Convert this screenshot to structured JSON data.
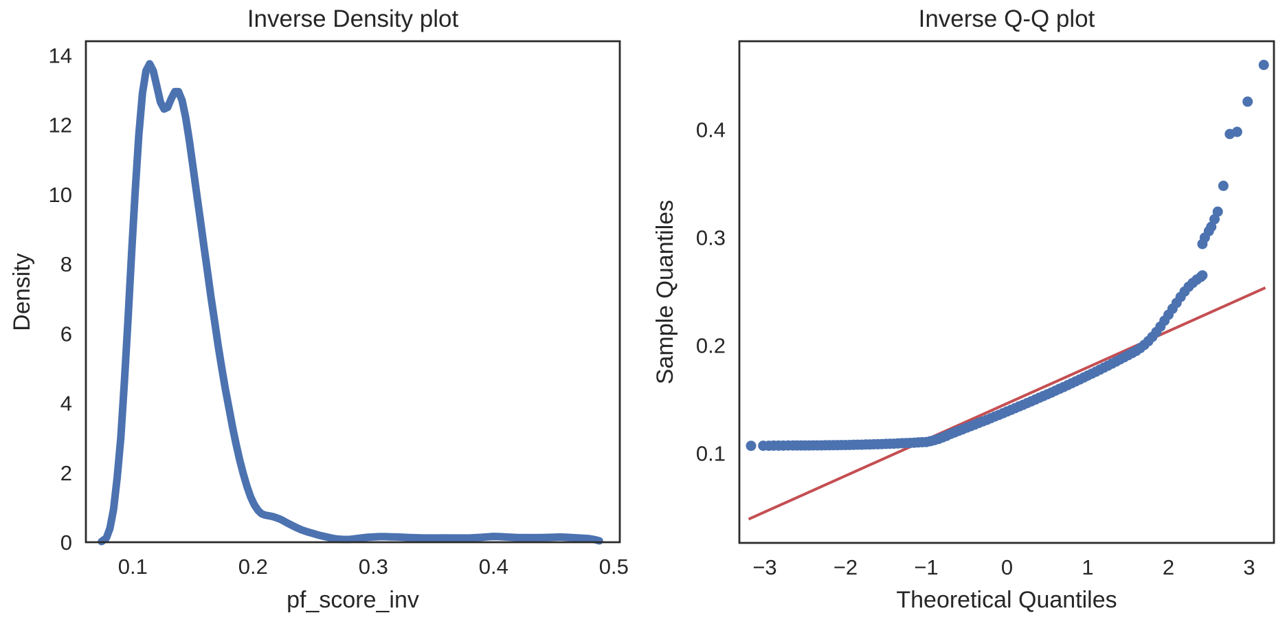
{
  "figure": {
    "background": "#ffffff",
    "text_color": "#262626",
    "spine_color": "#2b2b2b",
    "accent_blue": "#4C72B0",
    "accent_red": "#C44E52"
  },
  "chart_data": [
    {
      "id": "density",
      "type": "line",
      "title": "Inverse Density plot",
      "xlabel": "pf_score_inv",
      "ylabel": "Density",
      "xlim": [
        0.061,
        0.505
      ],
      "ylim": [
        0,
        14.4
      ],
      "grid": false,
      "legend": null,
      "xticks": [
        0.1,
        0.2,
        0.3,
        0.4,
        0.5
      ],
      "xtick_labels": [
        "0.1",
        "0.2",
        "0.3",
        "0.4",
        "0.5"
      ],
      "yticks": [
        0,
        2,
        4,
        6,
        8,
        10,
        12,
        14
      ],
      "ytick_labels": [
        "0",
        "2",
        "4",
        "6",
        "8",
        "10",
        "12",
        "14"
      ],
      "line_color": "#4C72B0",
      "line_width": 11,
      "points": [
        [
          0.074,
          0.02
        ],
        [
          0.078,
          0.12
        ],
        [
          0.081,
          0.4
        ],
        [
          0.084,
          0.95
        ],
        [
          0.087,
          1.85
        ],
        [
          0.09,
          3.0
        ],
        [
          0.093,
          4.6
        ],
        [
          0.096,
          6.4
        ],
        [
          0.099,
          8.3
        ],
        [
          0.102,
          10.1
        ],
        [
          0.105,
          11.7
        ],
        [
          0.108,
          12.9
        ],
        [
          0.111,
          13.55
        ],
        [
          0.114,
          13.75
        ],
        [
          0.117,
          13.55
        ],
        [
          0.12,
          13.1
        ],
        [
          0.123,
          12.65
        ],
        [
          0.126,
          12.45
        ],
        [
          0.129,
          12.5
        ],
        [
          0.132,
          12.75
        ],
        [
          0.135,
          12.95
        ],
        [
          0.138,
          12.95
        ],
        [
          0.141,
          12.7
        ],
        [
          0.144,
          12.2
        ],
        [
          0.147,
          11.55
        ],
        [
          0.15,
          10.8
        ],
        [
          0.153,
          10.05
        ],
        [
          0.156,
          9.3
        ],
        [
          0.159,
          8.55
        ],
        [
          0.162,
          7.8
        ],
        [
          0.165,
          7.05
        ],
        [
          0.168,
          6.35
        ],
        [
          0.171,
          5.65
        ],
        [
          0.174,
          5.0
        ],
        [
          0.177,
          4.4
        ],
        [
          0.18,
          3.85
        ],
        [
          0.183,
          3.3
        ],
        [
          0.186,
          2.8
        ],
        [
          0.189,
          2.35
        ],
        [
          0.192,
          1.95
        ],
        [
          0.195,
          1.6
        ],
        [
          0.198,
          1.3
        ],
        [
          0.201,
          1.08
        ],
        [
          0.204,
          0.92
        ],
        [
          0.207,
          0.82
        ],
        [
          0.21,
          0.78
        ],
        [
          0.213,
          0.76
        ],
        [
          0.216,
          0.74
        ],
        [
          0.219,
          0.71
        ],
        [
          0.222,
          0.67
        ],
        [
          0.225,
          0.62
        ],
        [
          0.228,
          0.56
        ],
        [
          0.232,
          0.49
        ],
        [
          0.236,
          0.42
        ],
        [
          0.24,
          0.36
        ],
        [
          0.245,
          0.3
        ],
        [
          0.25,
          0.25
        ],
        [
          0.255,
          0.2
        ],
        [
          0.26,
          0.16
        ],
        [
          0.265,
          0.12
        ],
        [
          0.27,
          0.09
        ],
        [
          0.275,
          0.08
        ],
        [
          0.28,
          0.08
        ],
        [
          0.285,
          0.1
        ],
        [
          0.29,
          0.12
        ],
        [
          0.295,
          0.14
        ],
        [
          0.3,
          0.15
        ],
        [
          0.305,
          0.16
        ],
        [
          0.31,
          0.16
        ],
        [
          0.315,
          0.155
        ],
        [
          0.32,
          0.15
        ],
        [
          0.33,
          0.135
        ],
        [
          0.34,
          0.125
        ],
        [
          0.35,
          0.12
        ],
        [
          0.36,
          0.125
        ],
        [
          0.37,
          0.12
        ],
        [
          0.38,
          0.12
        ],
        [
          0.39,
          0.14
        ],
        [
          0.395,
          0.155
        ],
        [
          0.4,
          0.165
        ],
        [
          0.405,
          0.16
        ],
        [
          0.41,
          0.15
        ],
        [
          0.42,
          0.135
        ],
        [
          0.43,
          0.13
        ],
        [
          0.44,
          0.135
        ],
        [
          0.45,
          0.145
        ],
        [
          0.455,
          0.15
        ],
        [
          0.46,
          0.145
        ],
        [
          0.465,
          0.135
        ],
        [
          0.47,
          0.125
        ],
        [
          0.475,
          0.115
        ],
        [
          0.48,
          0.1
        ],
        [
          0.485,
          0.07
        ],
        [
          0.488,
          0.04
        ]
      ]
    },
    {
      "id": "qq",
      "type": "scatter",
      "title": "Inverse Q-Q plot",
      "xlabel": "Theoretical Quantiles",
      "ylabel": "Sample Quantiles",
      "xlim": [
        -3.315,
        3.306
      ],
      "ylim": [
        0.017,
        0.482
      ],
      "grid": false,
      "legend": null,
      "xticks": [
        -3,
        -2,
        -1,
        0,
        1,
        2,
        3
      ],
      "xtick_labels": [
        "−3",
        "−2",
        "−1",
        "0",
        "1",
        "2",
        "3"
      ],
      "yticks": [
        0.1,
        0.2,
        0.3,
        0.4
      ],
      "ytick_labels": [
        "0.1",
        "0.2",
        "0.3",
        "0.4"
      ],
      "marker_color": "#4C72B0",
      "marker_radius": 7.5,
      "fit_line": {
        "color": "#C44E52",
        "width": 4,
        "points": [
          [
            -3.2,
            0.039
          ],
          [
            3.2,
            0.2535
          ]
        ]
      },
      "points": [
        [
          -3.17,
          0.107
        ],
        [
          -3.02,
          0.1071
        ],
        [
          -2.95,
          0.1071
        ],
        [
          -2.89,
          0.1072
        ],
        [
          -2.83,
          0.1072
        ],
        [
          -2.77,
          0.1072
        ],
        [
          -2.71,
          0.1073
        ],
        [
          -2.65,
          0.1073
        ],
        [
          -2.6,
          0.1073
        ],
        [
          -2.55,
          0.1073
        ],
        [
          -2.5,
          0.1073
        ],
        [
          -2.45,
          0.1073
        ],
        [
          -2.4,
          0.1074
        ],
        [
          -2.35,
          0.1074
        ],
        [
          -2.3,
          0.1074
        ],
        [
          -2.25,
          0.1075
        ],
        [
          -2.2,
          0.1075
        ],
        [
          -2.15,
          0.1076
        ],
        [
          -2.1,
          0.1076
        ],
        [
          -2.05,
          0.1077
        ],
        [
          -2.0,
          0.1077
        ],
        [
          -1.95,
          0.1078
        ],
        [
          -1.9,
          0.1079
        ],
        [
          -1.85,
          0.108
        ],
        [
          -1.8,
          0.108
        ],
        [
          -1.75,
          0.1082
        ],
        [
          -1.7,
          0.1083
        ],
        [
          -1.65,
          0.1084
        ],
        [
          -1.6,
          0.1085
        ],
        [
          -1.55,
          0.1086
        ],
        [
          -1.5,
          0.1088
        ],
        [
          -1.45,
          0.1089
        ],
        [
          -1.4,
          0.109
        ],
        [
          -1.35,
          0.1092
        ],
        [
          -1.3,
          0.1094
        ],
        [
          -1.25,
          0.1095
        ],
        [
          -1.2,
          0.1097
        ],
        [
          -1.15,
          0.1099
        ],
        [
          -1.1,
          0.1101
        ],
        [
          -1.05,
          0.1103
        ],
        [
          -1.0,
          0.1105
        ],
        [
          -0.95,
          0.1113
        ],
        [
          -0.9,
          0.1122
        ],
        [
          -0.85,
          0.1133
        ],
        [
          -0.8,
          0.1147
        ],
        [
          -0.75,
          0.1162
        ],
        [
          -0.7,
          0.118
        ],
        [
          -0.65,
          0.1194
        ],
        [
          -0.6,
          0.1209
        ],
        [
          -0.55,
          0.1223
        ],
        [
          -0.5,
          0.1238
        ],
        [
          -0.45,
          0.1252
        ],
        [
          -0.4,
          0.1267
        ],
        [
          -0.35,
          0.1282
        ],
        [
          -0.3,
          0.1297
        ],
        [
          -0.25,
          0.1311
        ],
        [
          -0.2,
          0.1326
        ],
        [
          -0.15,
          0.1342
        ],
        [
          -0.1,
          0.1357
        ],
        [
          -0.05,
          0.1372
        ],
        [
          0.0,
          0.1388
        ],
        [
          0.05,
          0.1403
        ],
        [
          0.1,
          0.1419
        ],
        [
          0.15,
          0.1435
        ],
        [
          0.2,
          0.145
        ],
        [
          0.25,
          0.1466
        ],
        [
          0.3,
          0.1482
        ],
        [
          0.35,
          0.1499
        ],
        [
          0.4,
          0.1515
        ],
        [
          0.45,
          0.1531
        ],
        [
          0.5,
          0.1548
        ],
        [
          0.55,
          0.1564
        ],
        [
          0.6,
          0.1581
        ],
        [
          0.65,
          0.1598
        ],
        [
          0.7,
          0.1615
        ],
        [
          0.75,
          0.1632
        ],
        [
          0.8,
          0.165
        ],
        [
          0.85,
          0.1667
        ],
        [
          0.9,
          0.1685
        ],
        [
          0.95,
          0.1703
        ],
        [
          1.0,
          0.1721
        ],
        [
          1.05,
          0.1739
        ],
        [
          1.1,
          0.1757
        ],
        [
          1.15,
          0.1776
        ],
        [
          1.2,
          0.1794
        ],
        [
          1.25,
          0.1813
        ],
        [
          1.3,
          0.1832
        ],
        [
          1.35,
          0.1851
        ],
        [
          1.4,
          0.1871
        ],
        [
          1.45,
          0.189
        ],
        [
          1.5,
          0.191
        ],
        [
          1.55,
          0.193
        ],
        [
          1.6,
          0.195
        ],
        [
          1.65,
          0.1975
        ],
        [
          1.7,
          0.2005
        ],
        [
          1.75,
          0.204
        ],
        [
          1.8,
          0.208
        ],
        [
          1.85,
          0.2125
        ],
        [
          1.9,
          0.2175
        ],
        [
          1.95,
          0.223
        ],
        [
          2.0,
          0.2285
        ],
        [
          2.05,
          0.234
        ],
        [
          2.1,
          0.2395
        ],
        [
          2.15,
          0.245
        ],
        [
          2.2,
          0.25
        ],
        [
          2.25,
          0.2545
        ],
        [
          2.3,
          0.258
        ],
        [
          2.35,
          0.261
        ],
        [
          2.4,
          0.2635
        ],
        [
          2.42,
          0.265
        ],
        [
          2.42,
          0.294
        ],
        [
          2.45,
          0.3
        ],
        [
          2.5,
          0.306
        ],
        [
          2.53,
          0.31
        ],
        [
          2.57,
          0.317
        ],
        [
          2.61,
          0.324
        ],
        [
          2.68,
          0.348
        ],
        [
          2.76,
          0.396
        ],
        [
          2.85,
          0.398
        ],
        [
          2.98,
          0.426
        ],
        [
          3.18,
          0.46
        ]
      ]
    }
  ]
}
